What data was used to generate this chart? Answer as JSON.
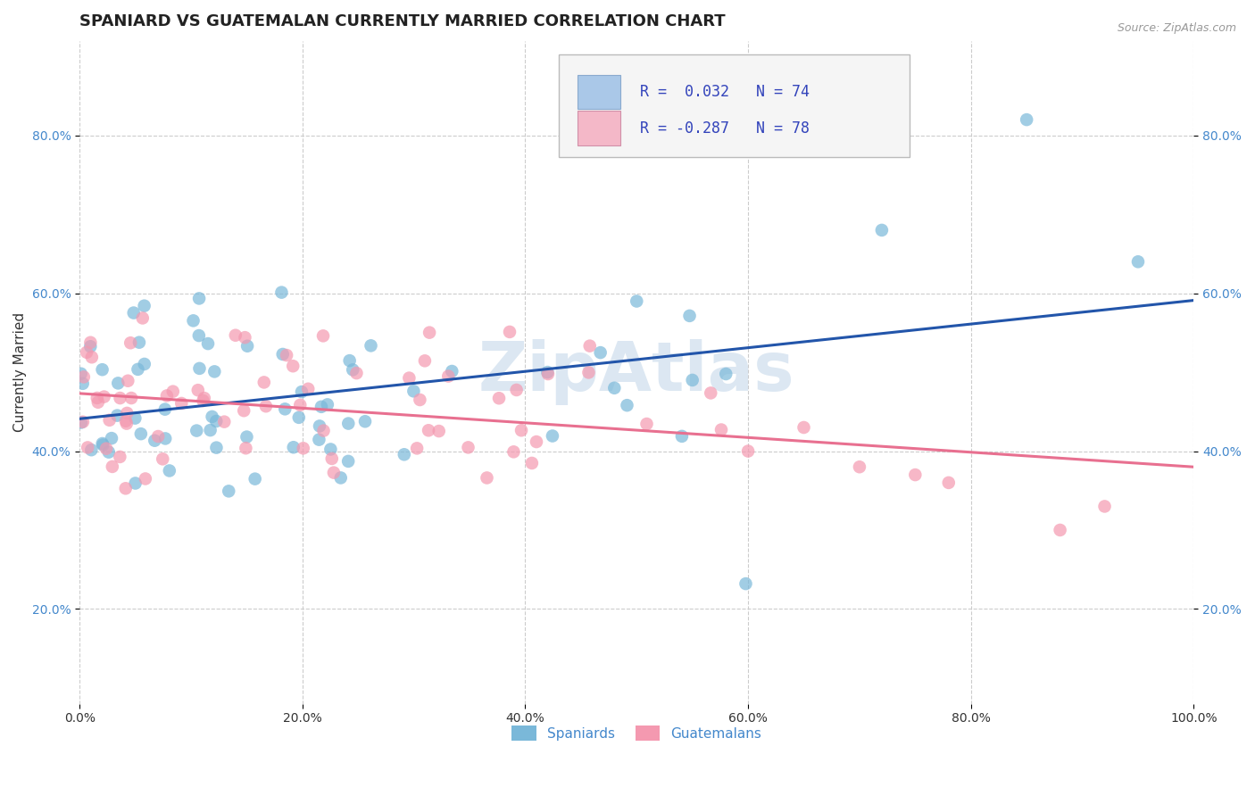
{
  "title": "SPANIARD VS GUATEMALAN CURRENTLY MARRIED CORRELATION CHART",
  "source_text": "Source: ZipAtlas.com",
  "ylabel": "Currently Married",
  "xlabel": "",
  "watermark": "ZipAtlas",
  "spaniard_color": "#7ab8d9",
  "guatemalan_color": "#f499b0",
  "spaniard_line_color": "#2255aa",
  "guatemalan_line_color": "#e87090",
  "spaniard_legend_color": "#aac8e8",
  "guatemalan_legend_color": "#f4b8c8",
  "xlim": [
    0.0,
    1.0
  ],
  "ylim": [
    0.08,
    0.92
  ],
  "xtick_positions": [
    0.0,
    0.2,
    0.4,
    0.6,
    0.8,
    1.0
  ],
  "xtick_labels": [
    "0.0%",
    "20.0%",
    "40.0%",
    "60.0%",
    "80.0%",
    "100.0%"
  ],
  "ytick_positions": [
    0.2,
    0.4,
    0.6,
    0.8
  ],
  "ytick_labels": [
    "20.0%",
    "40.0%",
    "60.0%",
    "80.0%"
  ],
  "grid_color": "#cccccc",
  "background_color": "#ffffff",
  "title_fontsize": 13,
  "axis_label_fontsize": 11,
  "tick_fontsize": 10,
  "legend_fontsize": 12,
  "tick_color": "#4488cc",
  "watermark_color": "#c5d8ea",
  "watermark_alpha": 0.6,
  "watermark_fontsize": 55
}
